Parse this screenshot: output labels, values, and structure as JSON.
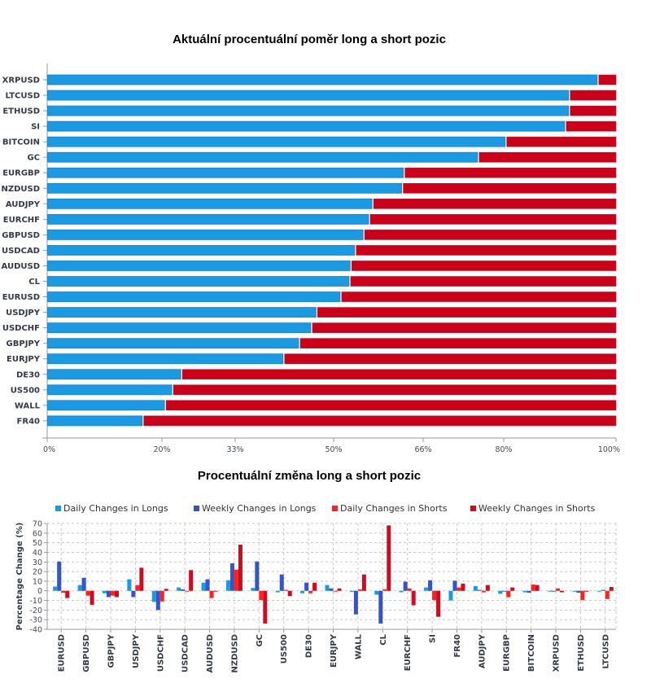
{
  "chart_data": [
    {
      "type": "bar",
      "orientation": "horizontal",
      "stacked": true,
      "title": "Aktuální procentuální poměr long a short pozic",
      "xlabel": "",
      "ylabel": "",
      "xlim": [
        0,
        100
      ],
      "x_ticks": [
        "0%",
        "20%",
        "33%",
        "50%",
        "66%",
        "80%",
        "100%"
      ],
      "x_tick_values": [
        0,
        20,
        33,
        50,
        66,
        80,
        100
      ],
      "categories": [
        "XRPUSD",
        "LTCUSD",
        "ETHUSD",
        "SI",
        "BITCOIN",
        "GC",
        "EURGBP",
        "NZDUSD",
        "AUDJPY",
        "EURCHF",
        "GBPUSD",
        "USDCAD",
        "AUDUSD",
        "CL",
        "EURUSD",
        "USDJPY",
        "USDCHF",
        "GBPJPY",
        "EURJPY",
        "DE30",
        "US500",
        "WALL",
        "FR40"
      ],
      "series": [
        {
          "name": "Long",
          "color": "#1b9ae4",
          "values": [
            96.8,
            91.7,
            91.7,
            91.0,
            80.4,
            75.6,
            62.6,
            62.3,
            57.0,
            56.4,
            55.4,
            53.9,
            53.1,
            52.9,
            51.3,
            47.1,
            46.2,
            44.1,
            41.4,
            23.5,
            21.9,
            20.6,
            16.7
          ]
        },
        {
          "name": "Short",
          "color": "#cc0019",
          "values": [
            3.2,
            8.3,
            8.3,
            9.0,
            19.6,
            24.4,
            37.4,
            37.7,
            43.0,
            43.6,
            44.6,
            46.1,
            46.9,
            47.1,
            48.7,
            52.9,
            53.8,
            55.9,
            58.6,
            76.5,
            78.1,
            79.4,
            83.3
          ]
        }
      ],
      "grid": false,
      "legend": "none"
    },
    {
      "type": "bar",
      "orientation": "vertical",
      "stacked": false,
      "title": "Procentuální změna long a short pozic",
      "xlabel": "",
      "ylabel": "Percentage Change (%)",
      "ylim": [
        -40,
        70
      ],
      "y_ticks": [
        70,
        60,
        50,
        40,
        30,
        20,
        10,
        0,
        -10,
        -20,
        -30,
        -40
      ],
      "categories": [
        "EURUSD",
        "GBPUSD",
        "GBPJPY",
        "USDJPY",
        "USDCHF",
        "USDCAD",
        "AUDUSD",
        "NZDUSD",
        "GC",
        "US500",
        "DE30",
        "EURJPY",
        "WALL",
        "CL",
        "EURCHF",
        "SI",
        "FR40",
        "AUDJPY",
        "EURGBP",
        "BITCOIN",
        "XRPUSD",
        "ETHUSD",
        "LTCUSD"
      ],
      "series": [
        {
          "name": "Daily Changes in Longs",
          "color": "#1b9ae4",
          "values": [
            4.5,
            6,
            -2.5,
            12,
            -11.5,
            3.5,
            8.5,
            11,
            3,
            -1.5,
            -2.5,
            6,
            -1,
            -4,
            -1.5,
            3.5,
            -10,
            5,
            -3,
            -1.5,
            0,
            -0.5,
            0
          ]
        },
        {
          "name": "Weekly Changes in Longs",
          "color": "#3355cc",
          "values": [
            30.5,
            13.5,
            -6.5,
            -6.5,
            -20,
            1.5,
            12,
            28.5,
            30.5,
            17,
            8.5,
            2.5,
            -24.5,
            -34,
            9.5,
            11,
            10.5,
            1,
            0,
            -2,
            -0.5,
            -2,
            1
          ]
        },
        {
          "name": "Daily Changes in Shorts",
          "color": "#ff2020",
          "values": [
            -2,
            -5,
            -5,
            6,
            -11,
            -0.5,
            -7.5,
            22,
            -9.5,
            1,
            -2.5,
            0,
            1.5,
            1.5,
            2.5,
            -9.5,
            3.5,
            -1.5,
            -6.5,
            6.5,
            2.5,
            -9.5,
            -8.5
          ]
        },
        {
          "name": "Weekly Changes in Shorts",
          "color": "#d20a20",
          "values": [
            -7.5,
            -14.5,
            -6.5,
            24,
            2,
            21.5,
            0,
            48,
            -34,
            -5.5,
            8.5,
            2.5,
            17,
            68,
            -15,
            -27,
            7.5,
            6,
            3.5,
            6,
            -1.5,
            -0.5,
            4
          ]
        }
      ],
      "grid": true,
      "legend": "top"
    }
  ]
}
